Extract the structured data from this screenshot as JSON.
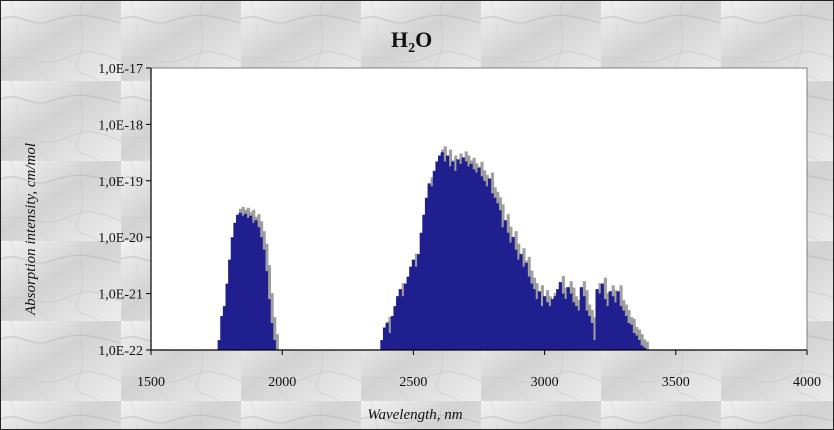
{
  "chart_data": {
    "type": "bar",
    "title": "H",
    "title_subscript": "2",
    "title_suffix": "O",
    "xlabel": "Wavelength, nm",
    "ylabel": "Absorption intensity, cm/mol",
    "xlim": [
      1500,
      4000
    ],
    "ylim": [
      1e-22,
      1e-17
    ],
    "yscale": "log",
    "grid": false,
    "x_ticks": [
      "1500",
      "2000",
      "2500",
      "3000",
      "3500",
      "4000"
    ],
    "x_tick_values": [
      1500,
      2000,
      2500,
      3000,
      3500,
      4000
    ],
    "y_ticks": [
      "1,0E-17",
      "1,0E-18",
      "1,0E-19",
      "1,0E-20",
      "1,0E-21",
      "1,0E-22"
    ],
    "y_tick_values": [
      1e-17,
      1e-18,
      1e-19,
      1e-20,
      1e-21,
      1e-22
    ],
    "colors": {
      "series_primary": "#1f1f8f",
      "series_secondary": "#8f8f8f",
      "plot_background": "#ffffff",
      "axis": "#000000"
    },
    "series": [
      {
        "x": [
          1760,
          1770,
          1780,
          1790,
          1800,
          1810,
          1820,
          1830,
          1840,
          1850,
          1860,
          1870,
          1880,
          1890,
          1900,
          1910,
          1920,
          1930,
          1940,
          1950,
          1960,
          1970,
          2380,
          2390,
          2400,
          2410,
          2420,
          2430,
          2440,
          2450,
          2460,
          2470,
          2480,
          2490,
          2500,
          2510,
          2520,
          2530,
          2540,
          2550,
          2560,
          2570,
          2580,
          2590,
          2600,
          2610,
          2620,
          2630,
          2640,
          2650,
          2660,
          2670,
          2680,
          2690,
          2700,
          2710,
          2720,
          2730,
          2740,
          2750,
          2760,
          2770,
          2780,
          2790,
          2800,
          2810,
          2820,
          2830,
          2840,
          2850,
          2860,
          2870,
          2880,
          2890,
          2900,
          2910,
          2920,
          2930,
          2940,
          2950,
          2960,
          2970,
          2980,
          2990,
          3000,
          3010,
          3020,
          3030,
          3040,
          3050,
          3060,
          3070,
          3080,
          3090,
          3100,
          3110,
          3120,
          3130,
          3140,
          3150,
          3160,
          3170,
          3180,
          3190,
          3200,
          3210,
          3220,
          3230,
          3240,
          3250,
          3260,
          3270,
          3280,
          3290,
          3300,
          3310,
          3320,
          3330,
          3340,
          3350,
          3360,
          3370,
          3380
        ],
        "values": [
          1.5e-22,
          4e-22,
          6e-22,
          1.5e-21,
          4e-21,
          1e-20,
          1.8e-20,
          2.5e-20,
          2.7e-20,
          2.4e-20,
          2.6e-20,
          2.2e-20,
          2.4e-20,
          1.8e-20,
          2e-20,
          1.5e-20,
          1e-20,
          6e-21,
          2.5e-21,
          8e-22,
          3e-22,
          1.5e-22,
          1.5e-22,
          2.5e-22,
          3e-22,
          2e-22,
          4e-22,
          6e-22,
          9e-22,
          1.2e-21,
          9e-22,
          1.5e-21,
          2e-21,
          3e-21,
          4e-21,
          3e-21,
          5e-21,
          1.2e-20,
          2.5e-20,
          5e-20,
          9e-20,
          8e-20,
          1.5e-19,
          2.2e-19,
          2.8e-19,
          3.2e-19,
          2.2e-19,
          2.8e-19,
          1.8e-19,
          2.2e-19,
          1.5e-19,
          2.4e-19,
          2e-19,
          2.6e-19,
          2.2e-19,
          1.8e-19,
          2e-19,
          1.6e-19,
          1.4e-19,
          1.7e-19,
          1.2e-19,
          1e-19,
          8e-20,
          1.1e-19,
          6e-20,
          5e-20,
          4e-20,
          3e-20,
          1.5e-20,
          2e-20,
          1.2e-20,
          8e-21,
          1e-20,
          6e-21,
          4e-21,
          5e-21,
          3e-21,
          3.5e-21,
          2e-21,
          1.5e-21,
          1.2e-21,
          8e-22,
          1.1e-21,
          6e-22,
          9e-22,
          7e-22,
          6e-22,
          8e-22,
          9e-22,
          1.2e-21,
          1.6e-21,
          1e-21,
          8e-22,
          1.3e-21,
          1e-21,
          7e-22,
          6e-22,
          5e-22,
          1.3e-21,
          9e-22,
          5e-22,
          4e-22,
          3e-22,
          1.5e-22,
          1.2e-21,
          1e-21,
          1.5e-21,
          8e-22,
          6e-22,
          1.1e-21,
          9e-22,
          7e-22,
          1.1e-21,
          6e-22,
          5e-22,
          4e-22,
          3e-22,
          2.8e-22,
          2e-22,
          1.8e-22,
          1.5e-22,
          1.2e-22,
          1.1e-22
        ]
      }
    ]
  }
}
